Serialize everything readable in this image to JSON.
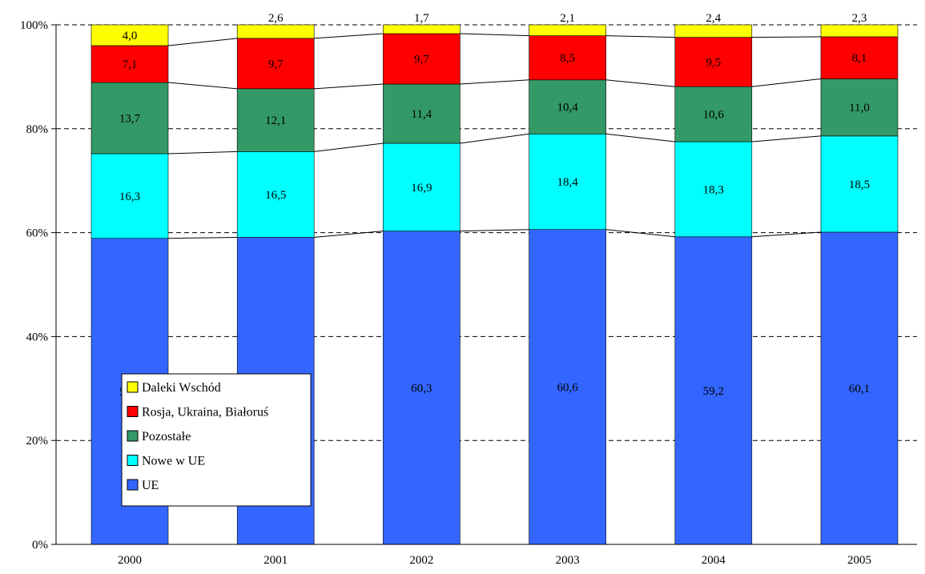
{
  "chart_data": {
    "type": "bar",
    "stacked": true,
    "percent": true,
    "categories": [
      "2000",
      "2001",
      "2002",
      "2003",
      "2004",
      "2005"
    ],
    "series": [
      {
        "name": "UE",
        "color": "#3366FF",
        "values": [
          58.9,
          59.1,
          60.3,
          60.6,
          59.2,
          60.1
        ],
        "labels": [
          "58,9",
          "59,1",
          "60,3",
          "60,6",
          "59,2",
          "60,1"
        ]
      },
      {
        "name": "Nowe w UE",
        "color": "#00FFFF",
        "values": [
          16.3,
          16.5,
          16.9,
          18.4,
          18.3,
          18.5
        ],
        "labels": [
          "16,3",
          "16,5",
          "16,9",
          "18,4",
          "18,3",
          "18,5"
        ]
      },
      {
        "name": "Pozostałe",
        "color": "#339966",
        "values": [
          13.7,
          12.1,
          11.4,
          10.4,
          10.6,
          11.0
        ],
        "labels": [
          "13,7",
          "12,1",
          "11,4",
          "10,4",
          "10,6",
          "11,0"
        ]
      },
      {
        "name": "Rosja, Ukraina, Białoruś",
        "color": "#FF0000",
        "values": [
          7.1,
          9.7,
          9.7,
          8.5,
          9.5,
          8.1
        ],
        "labels": [
          "7,1",
          "9,7",
          "9,7",
          "8,5",
          "9,5",
          "8,1"
        ]
      },
      {
        "name": "Daleki Wschód",
        "color": "#FFFF00",
        "values": [
          4.0,
          2.6,
          1.7,
          2.1,
          2.4,
          2.3
        ],
        "labels": [
          "4,0",
          "2,6",
          "1,7",
          "2,1",
          "2,4",
          "2,3"
        ]
      }
    ],
    "legend_order": [
      "Daleki Wschód",
      "Rosja, Ukraina, Białoruś",
      "Pozostałe",
      "Nowe w UE",
      "UE"
    ],
    "y_ticks": [
      "0%",
      "20%",
      "40%",
      "60%",
      "80%",
      "100%"
    ],
    "ylim": [
      0,
      100
    ],
    "grid": true,
    "legend_position": "lower-left",
    "xlabel": "",
    "ylabel": "",
    "title": ""
  }
}
